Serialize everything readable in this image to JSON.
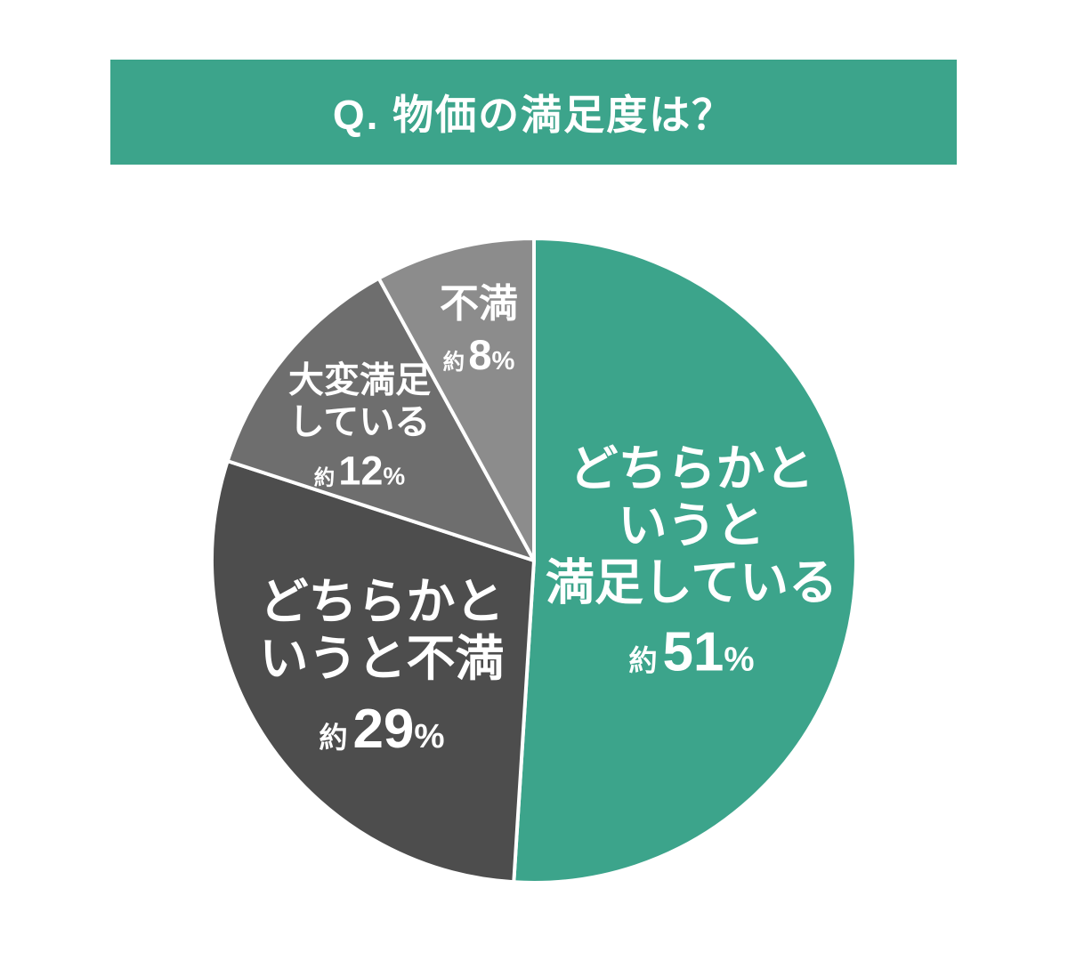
{
  "header": {
    "title": "Q. 物価の満足度は？",
    "background_color": "#3CA48B",
    "text_color": "#FFFFFF"
  },
  "chart_data": {
    "type": "pie",
    "title": "Q. 物価の満足度は？",
    "unit": "%",
    "start_angle_deg": -90,
    "direction": "clockwise",
    "separator_color": "#FFFFFF",
    "slices": [
      {
        "label": "どちらかというと満足している",
        "label_lines": [
          "どちらかと",
          "いうと",
          "満足している"
        ],
        "approx": "約",
        "value": 51,
        "value_number": "51",
        "percent": "%",
        "color": "#3CA48B",
        "text_color": "#FFFFFF"
      },
      {
        "label": "どちらかというと不満",
        "label_lines": [
          "どちらかと",
          "いうと不満"
        ],
        "approx": "約",
        "value": 29,
        "value_number": "29",
        "percent": "%",
        "color": "#4D4D4D",
        "text_color": "#FFFFFF"
      },
      {
        "label": "大変満足している",
        "label_lines": [
          "大変満足",
          "している"
        ],
        "approx": "約",
        "value": 12,
        "value_number": "12",
        "percent": "%",
        "color": "#6E6E6E",
        "text_color": "#FFFFFF"
      },
      {
        "label": "不満",
        "label_lines": [
          "不満"
        ],
        "approx": "約",
        "value": 8,
        "value_number": "8",
        "percent": "%",
        "color": "#8C8C8C",
        "text_color": "#FFFFFF"
      }
    ]
  }
}
